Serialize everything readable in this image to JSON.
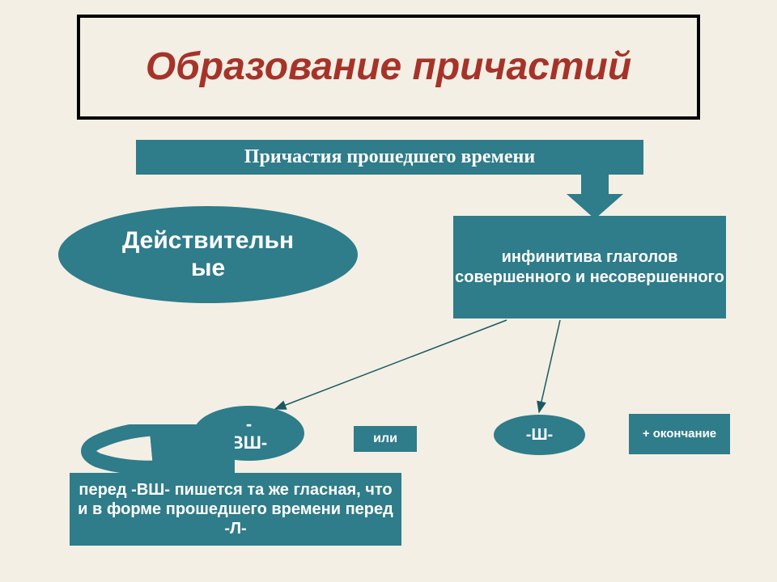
{
  "colors": {
    "background": "#f3efe4",
    "box_fill": "#2f7c8a",
    "title_color": "#a6332a",
    "text_on_fill": "#ffffff",
    "border": "#000000",
    "arrow_line": "#195963"
  },
  "title": "Образование причастий",
  "subtitle": "Причастия прошедшего времени",
  "active_label": "Действительн\nые",
  "source": "инфинитива глаголов совершенного и несовершенного",
  "suffix1": "-\nВШ-",
  "or": "или",
  "suffix2": "-Ш-",
  "ending": "+ окончание",
  "note": "перед -ВШ- пишется та же гласная, что и в форме прошедшего времени перед -Л-",
  "fontsize": {
    "title": 48,
    "subtitle": 24,
    "ellipse": 30,
    "source": 20,
    "suffix": 22,
    "or": 16,
    "ending": 15,
    "note": 20
  }
}
